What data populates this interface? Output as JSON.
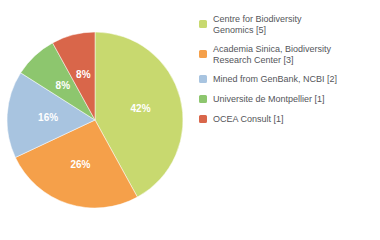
{
  "chart_data": {
    "type": "pie",
    "categories": [
      "Centre for Biodiversity\nGenomics [5]",
      "Academia Sinica, Biodiversity\nResearch Center [3]",
      "Mined from GenBank, NCBI [2]",
      "Universite de Montpellier [1]",
      "OCEA Consult [1]"
    ],
    "values": [
      42,
      26,
      16,
      8,
      8
    ],
    "value_labels": [
      "42%",
      "26%",
      "16%",
      "8%",
      "8%"
    ],
    "colors": [
      "#c8d96f",
      "#f5a04a",
      "#a8c4e0",
      "#8dc66e",
      "#d9664a"
    ],
    "data_labels": true,
    "legend": "right"
  }
}
